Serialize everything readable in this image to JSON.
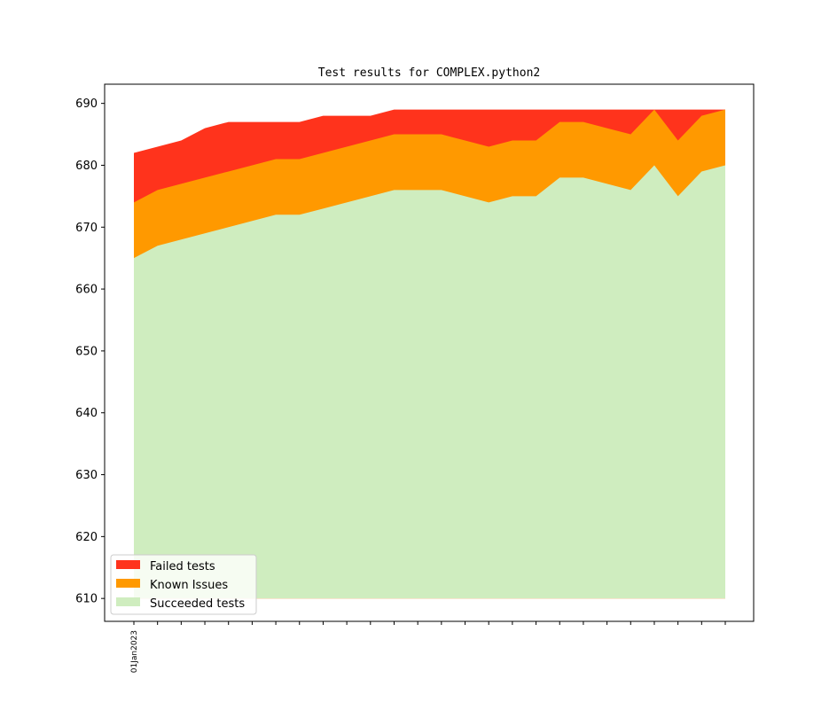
{
  "chart_data": {
    "type": "area",
    "title": "Test results for COMPLEX.python2",
    "xlabel": "",
    "ylabel": "",
    "x_tick_labels": [
      "01Jan2023"
    ],
    "x_tick_count": 26,
    "yticks": [
      610,
      620,
      630,
      640,
      650,
      660,
      670,
      680,
      690
    ],
    "ylim": [
      606.3,
      693.1
    ],
    "baseline": 610,
    "stacked": true,
    "grid": false,
    "legend_position": "lower-left",
    "series": [
      {
        "name": "Succeeded tests",
        "color": "#cfedbf",
        "values": [
          665,
          667,
          668,
          669,
          670,
          671,
          672,
          672,
          673,
          674,
          675,
          676,
          676,
          676,
          675,
          674,
          675,
          675,
          678,
          678,
          677,
          676,
          680,
          675,
          679,
          680
        ]
      },
      {
        "name": "Known Issues",
        "color": "#ff9900",
        "values": [
          674,
          676,
          677,
          678,
          679,
          680,
          681,
          681,
          682,
          683,
          684,
          685,
          685,
          685,
          684,
          683,
          684,
          684,
          687,
          687,
          686,
          685,
          689,
          684,
          688,
          689
        ]
      },
      {
        "name": "Failed tests",
        "color": "#ff331c",
        "values": [
          682,
          683,
          684,
          686,
          687,
          687,
          687,
          687,
          688,
          688,
          688,
          689,
          689,
          689,
          689,
          689,
          689,
          689,
          689,
          689,
          689,
          689,
          689,
          689,
          689,
          689
        ]
      }
    ],
    "legend_order": [
      "Failed tests",
      "Known Issues",
      "Succeeded tests"
    ]
  }
}
